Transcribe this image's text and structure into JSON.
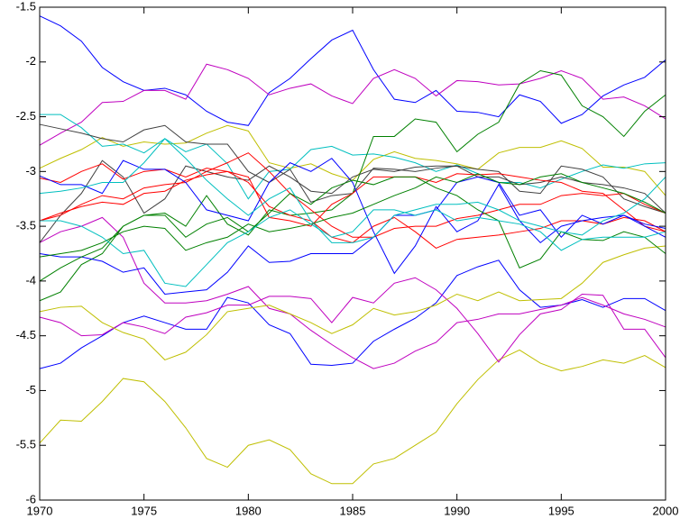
{
  "chart_data": {
    "type": "line",
    "x": [
      1970,
      1971,
      1972,
      1973,
      1974,
      1975,
      1976,
      1977,
      1978,
      1979,
      1980,
      1981,
      1982,
      1983,
      1984,
      1985,
      1986,
      1987,
      1988,
      1989,
      1990,
      1991,
      1992,
      1993,
      1994,
      1995,
      1996,
      1997,
      1998,
      1999,
      2000
    ],
    "xlim": [
      1970,
      2000
    ],
    "xticks": [
      1970,
      1975,
      1980,
      1985,
      1990,
      1995,
      2000
    ],
    "ylim": [
      -6,
      -1.5
    ],
    "yticks": [
      -6,
      -5.5,
      -5,
      -4.5,
      -4,
      -3.5,
      -3,
      -2.5,
      -2,
      -1.5
    ],
    "series": [
      {
        "color": "#0000ff",
        "values": [
          -1.58,
          -1.67,
          -1.81,
          -2.05,
          -2.18,
          -2.26,
          -2.24,
          -2.3,
          -2.45,
          -2.55,
          -2.58,
          -2.28,
          -2.15,
          -1.97,
          -1.8,
          -1.71,
          -2.07,
          -2.34,
          -2.37,
          -2.26,
          -2.45,
          -2.46,
          -2.5,
          -2.3,
          -2.36,
          -2.56,
          -2.48,
          -2.31,
          -2.21,
          -2.14,
          -1.98
        ]
      },
      {
        "color": "#bf00bf",
        "values": [
          -2.76,
          -2.65,
          -2.55,
          -2.37,
          -2.36,
          -2.26,
          -2.26,
          -2.34,
          -2.02,
          -2.07,
          -2.15,
          -2.3,
          -2.24,
          -2.2,
          -2.31,
          -2.38,
          -2.15,
          -2.07,
          -2.15,
          -2.31,
          -2.17,
          -2.18,
          -2.21,
          -2.2,
          -2.15,
          -2.08,
          -2.15,
          -2.34,
          -2.32,
          -2.4,
          -2.52
        ]
      },
      {
        "color": "#bfbf00",
        "values": [
          -5.48,
          -5.27,
          -5.28,
          -5.1,
          -4.89,
          -4.92,
          -5.1,
          -5.34,
          -5.62,
          -5.7,
          -5.5,
          -5.45,
          -5.54,
          -5.76,
          -5.85,
          -5.85,
          -5.67,
          -5.62,
          -5.5,
          -5.38,
          -5.12,
          -4.9,
          -4.72,
          -4.63,
          -4.75,
          -4.82,
          -4.78,
          -4.72,
          -4.75,
          -4.68,
          -4.79
        ]
      },
      {
        "color": "#0000ff",
        "values": [
          -4.8,
          -4.75,
          -4.61,
          -4.5,
          -4.38,
          -4.32,
          -4.38,
          -4.44,
          -4.44,
          -4.15,
          -4.2,
          -4.4,
          -4.48,
          -4.76,
          -4.77,
          -4.75,
          -4.55,
          -4.44,
          -4.34,
          -4.2,
          -3.95,
          -3.87,
          -3.81,
          -4.08,
          -4.24,
          -4.22,
          -4.17,
          -4.24,
          -4.16,
          -4.16,
          -4.27
        ]
      },
      {
        "color": "#bf00bf",
        "values": [
          -4.33,
          -4.38,
          -4.5,
          -4.49,
          -4.38,
          -4.42,
          -4.48,
          -4.33,
          -4.29,
          -4.22,
          -4.22,
          -4.14,
          -4.14,
          -4.16,
          -4.38,
          -4.15,
          -4.2,
          -4.02,
          -3.97,
          -4.08,
          -4.25,
          -4.48,
          -4.74,
          -4.49,
          -4.3,
          -4.26,
          -4.12,
          -4.13,
          -4.44,
          -4.44,
          -4.7
        ]
      },
      {
        "color": "#bf00bf",
        "values": [
          -3.65,
          -3.55,
          -3.5,
          -3.42,
          -3.6,
          -4.02,
          -4.2,
          -4.2,
          -4.18,
          -4.12,
          -4.05,
          -4.25,
          -4.3,
          -4.45,
          -4.58,
          -4.7,
          -4.8,
          -4.75,
          -4.64,
          -4.56,
          -4.38,
          -4.35,
          -4.3,
          -4.3,
          -4.26,
          -4.22,
          -4.15,
          -4.22,
          -4.3,
          -4.35,
          -4.42
        ]
      },
      {
        "color": "#bfbf00",
        "values": [
          -4.28,
          -4.24,
          -4.23,
          -4.38,
          -4.47,
          -4.53,
          -4.72,
          -4.65,
          -4.49,
          -4.28,
          -4.25,
          -4.22,
          -4.3,
          -4.38,
          -4.48,
          -4.4,
          -4.25,
          -4.31,
          -4.28,
          -4.22,
          -4.12,
          -4.18,
          -4.1,
          -4.18,
          -4.17,
          -4.16,
          -4.02,
          -3.83,
          -3.76,
          -3.7,
          -3.68
        ]
      },
      {
        "color": "#bfbf00",
        "values": [
          -2.97,
          -2.88,
          -2.8,
          -2.69,
          -2.77,
          -2.73,
          -2.75,
          -2.74,
          -2.65,
          -2.58,
          -2.63,
          -2.92,
          -2.97,
          -2.93,
          -3.02,
          -3.08,
          -2.89,
          -2.82,
          -2.88,
          -2.9,
          -2.93,
          -2.98,
          -2.83,
          -2.78,
          -2.78,
          -2.72,
          -2.79,
          -2.96,
          -2.96,
          -3.0,
          -3.22
        ]
      },
      {
        "color": "#00bfbf",
        "values": [
          -2.48,
          -2.48,
          -2.6,
          -2.77,
          -2.75,
          -2.83,
          -2.7,
          -2.82,
          -2.75,
          -2.93,
          -3.25,
          -3.0,
          -2.98,
          -2.8,
          -2.77,
          -2.85,
          -2.84,
          -2.87,
          -2.92,
          -3.0,
          -2.94,
          -3.02,
          -3.1,
          -3.1,
          -3.15,
          -3.07,
          -3.0,
          -2.94,
          -2.97,
          -2.93,
          -2.92
        ]
      },
      {
        "color": "#008000",
        "values": [
          -4.18,
          -4.1,
          -3.85,
          -3.75,
          -3.5,
          -3.4,
          -3.38,
          -3.5,
          -3.22,
          -3.48,
          -3.58,
          -3.35,
          -3.4,
          -3.38,
          -3.35,
          -3.2,
          -2.68,
          -2.68,
          -2.52,
          -2.55,
          -2.82,
          -2.66,
          -2.55,
          -2.2,
          -2.08,
          -2.12,
          -2.4,
          -2.5,
          -2.68,
          -2.45,
          -2.3
        ]
      },
      {
        "color": "#404040",
        "values": [
          -2.57,
          -2.61,
          -2.65,
          -2.7,
          -2.73,
          -2.62,
          -2.58,
          -2.73,
          -2.75,
          -2.75,
          -3.0,
          -3.1,
          -2.98,
          -3.28,
          -3.22,
          -3.2,
          -2.97,
          -2.98,
          -3.0,
          -2.97,
          -2.95,
          -3.05,
          -3.05,
          -3.12,
          -3.1,
          -3.05,
          -3.1,
          -3.12,
          -3.15,
          -3.2,
          -3.38
        ]
      },
      {
        "color": "#404040",
        "values": [
          -3.65,
          -3.4,
          -3.2,
          -2.9,
          -3.05,
          -3.38,
          -3.25,
          -2.95,
          -3.0,
          -3.05,
          -3.08,
          -2.95,
          -3.05,
          -3.18,
          -3.2,
          -3.05,
          -2.98,
          -3.0,
          -2.96,
          -2.95,
          -2.95,
          -2.98,
          -3.0,
          -3.18,
          -3.2,
          -2.95,
          -2.98,
          -3.05,
          -3.25,
          -3.32,
          -3.38
        ]
      },
      {
        "color": "#ff0000",
        "values": [
          -3.45,
          -3.4,
          -3.3,
          -3.22,
          -3.25,
          -3.15,
          -3.12,
          -3.1,
          -3.0,
          -2.92,
          -2.83,
          -3.0,
          -3.2,
          -3.35,
          -3.5,
          -3.6,
          -3.6,
          -3.52,
          -3.5,
          -3.5,
          -3.43,
          -3.4,
          -3.35,
          -3.3,
          -3.3,
          -3.22,
          -3.2,
          -3.22,
          -3.2,
          -3.3,
          -3.38
        ]
      },
      {
        "color": "#ff0000",
        "values": [
          -3.06,
          -3.1,
          -3.0,
          -2.93,
          -3.07,
          -3.0,
          -2.98,
          -3.05,
          -2.97,
          -3.0,
          -3.1,
          -3.32,
          -3.4,
          -3.45,
          -3.6,
          -3.65,
          -3.5,
          -3.42,
          -3.55,
          -3.7,
          -3.62,
          -3.6,
          -3.58,
          -3.55,
          -3.52,
          -3.45,
          -3.45,
          -3.48,
          -3.42,
          -3.45,
          -3.55
        ]
      },
      {
        "color": "#ff0000",
        "values": [
          -3.45,
          -3.38,
          -3.32,
          -3.28,
          -3.3,
          -3.2,
          -3.18,
          -3.08,
          -3.03,
          -3.0,
          -3.05,
          -3.42,
          -3.45,
          -3.5,
          -3.3,
          -3.2,
          -3.05,
          -3.05,
          -3.05,
          -3.1,
          -3.02,
          -3.03,
          -3.02,
          -3.05,
          -3.08,
          -3.1,
          -3.18,
          -3.2,
          -3.35,
          -3.5,
          -3.55
        ]
      },
      {
        "color": "#0000ff",
        "values": [
          -3.04,
          -3.12,
          -3.12,
          -3.2,
          -2.9,
          -2.98,
          -2.98,
          -3.1,
          -3.35,
          -3.4,
          -3.45,
          -3.1,
          -2.92,
          -3.0,
          -2.88,
          -3.1,
          -3.55,
          -3.93,
          -3.68,
          -3.32,
          -3.55,
          -3.45,
          -3.12,
          -3.45,
          -3.65,
          -3.5,
          -3.45,
          -3.42,
          -3.4,
          -3.5,
          -3.6
        ]
      },
      {
        "color": "#0000ff",
        "values": [
          -3.75,
          -3.78,
          -3.78,
          -3.82,
          -3.92,
          -3.88,
          -4.12,
          -4.1,
          -4.08,
          -3.92,
          -3.68,
          -3.83,
          -3.82,
          -3.75,
          -3.75,
          -3.75,
          -3.6,
          -3.4,
          -3.4,
          -3.35,
          -3.1,
          -3.05,
          -3.1,
          -3.4,
          -3.35,
          -3.6,
          -3.4,
          -3.48,
          -3.4,
          -3.48,
          -3.52
        ]
      },
      {
        "color": "#008000",
        "values": [
          -4.0,
          -3.88,
          -3.78,
          -3.7,
          -3.5,
          -3.4,
          -3.4,
          -3.6,
          -3.48,
          -3.42,
          -3.55,
          -3.38,
          -3.2,
          -3.3,
          -3.15,
          -3.08,
          -3.12,
          -3.05,
          -3.05,
          -3.15,
          -3.22,
          -3.35,
          -3.45,
          -3.88,
          -3.8,
          -3.55,
          -3.62,
          -3.63,
          -3.55,
          -3.6,
          -3.75
        ]
      },
      {
        "color": "#008000",
        "values": [
          -3.78,
          -3.75,
          -3.72,
          -3.65,
          -3.55,
          -3.5,
          -3.52,
          -3.72,
          -3.65,
          -3.6,
          -3.48,
          -3.55,
          -3.52,
          -3.48,
          -3.42,
          -3.38,
          -3.3,
          -3.22,
          -3.15,
          -3.05,
          -3.1,
          -3.02,
          -3.1,
          -3.12,
          -3.05,
          -3.02,
          -3.1,
          -3.15,
          -3.2,
          -3.28,
          -3.38
        ]
      },
      {
        "color": "#00bfbf",
        "values": [
          -3.2,
          -3.18,
          -3.15,
          -3.1,
          -3.1,
          -2.92,
          -2.7,
          -2.88,
          -3.08,
          -3.25,
          -3.4,
          -3.25,
          -3.15,
          -3.45,
          -3.65,
          -3.65,
          -3.6,
          -3.4,
          -3.35,
          -3.3,
          -3.3,
          -3.28,
          -3.35,
          -3.45,
          -3.5,
          -3.55,
          -3.58,
          -3.45,
          -3.38,
          -3.25,
          -3.05
        ]
      },
      {
        "color": "#00bfbf",
        "values": [
          -3.45,
          -3.45,
          -3.5,
          -3.6,
          -3.75,
          -3.72,
          -4.02,
          -4.05,
          -3.85,
          -3.65,
          -3.55,
          -3.42,
          -3.35,
          -3.48,
          -3.6,
          -3.55,
          -3.35,
          -3.35,
          -3.4,
          -3.35,
          -3.45,
          -3.42,
          -3.45,
          -3.48,
          -3.55,
          -3.72,
          -3.62,
          -3.6,
          -3.6,
          -3.6,
          -3.55
        ]
      }
    ]
  }
}
